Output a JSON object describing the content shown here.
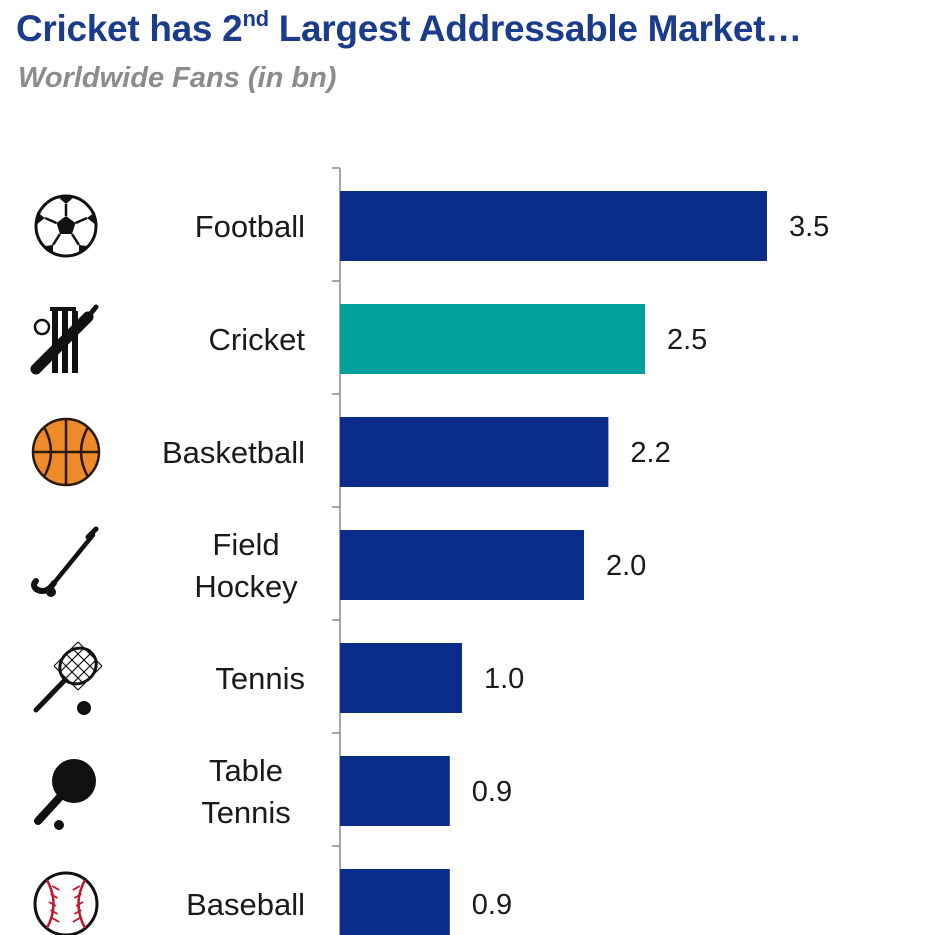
{
  "title_main": "Cricket has 2",
  "title_sup": "nd",
  "title_rest": " Largest Addressable Market…",
  "subtitle": "Worldwide Fans (in bn)",
  "colors": {
    "primary": "#0a2d8c",
    "highlight": "#00a19a",
    "title": "#1a3c8a",
    "subtitle": "#8c8c8c"
  },
  "chart_data": {
    "type": "bar",
    "orientation": "horizontal",
    "title": "Cricket has 2nd Largest Addressable Market…",
    "subtitle": "Worldwide Fans (in bn)",
    "categories": [
      [
        "Football"
      ],
      [
        "Cricket"
      ],
      [
        "Basketball"
      ],
      [
        "Field",
        "Hockey"
      ],
      [
        "Tennis"
      ],
      [
        "Table",
        "Tennis"
      ],
      [
        "Baseball"
      ]
    ],
    "values": [
      3.5,
      2.5,
      2.2,
      2.0,
      1.0,
      0.9,
      0.9
    ],
    "value_labels": [
      "3.5",
      "2.5",
      "2.2",
      "2.0",
      "1.0",
      "0.9",
      "0.9"
    ],
    "icons": [
      "football-icon",
      "cricket-icon",
      "basketball-icon",
      "field-hockey-icon",
      "tennis-icon",
      "table-tennis-icon",
      "baseball-icon"
    ],
    "highlight_index": 1,
    "xlim": [
      0,
      3.5
    ],
    "grid": false
  }
}
